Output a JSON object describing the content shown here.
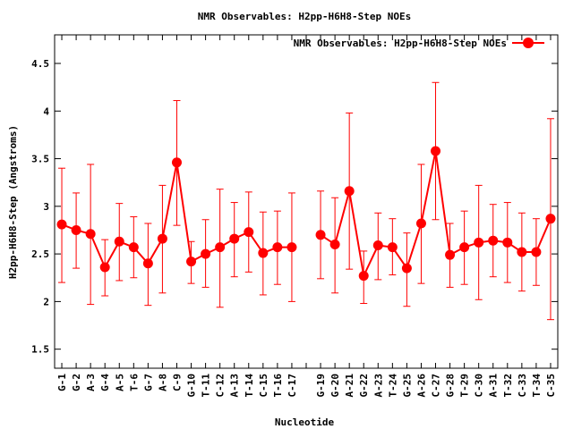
{
  "chart_data": {
    "type": "line",
    "title": "NMR Observables: H2pp-H6H8-Step NOEs",
    "xlabel": "Nucleotide",
    "ylabel": "H2pp-H6H8-Step (Angstroms)",
    "ylim": [
      1.3,
      4.8
    ],
    "yticks": [
      "1.5",
      "2",
      "2.5",
      "3",
      "3.5",
      "4",
      "4.5"
    ],
    "grid": false,
    "legend": "top-right",
    "color": "#ff0000",
    "categories": [
      "G-1",
      "G-2",
      "A-3",
      "G-4",
      "A-5",
      "T-6",
      "G-7",
      "A-8",
      "C-9",
      "G-10",
      "T-11",
      "C-12",
      "A-13",
      "T-14",
      "C-15",
      "T-16",
      "C-17",
      "",
      "G-19",
      "G-20",
      "A-21",
      "G-22",
      "A-23",
      "T-24",
      "G-25",
      "A-26",
      "C-27",
      "G-28",
      "T-29",
      "C-30",
      "A-31",
      "T-32",
      "C-33",
      "T-34",
      "C-35"
    ],
    "series": [
      {
        "name": "NMR Observables: H2pp-H6H8-Step NOEs",
        "values": [
          2.81,
          2.75,
          2.71,
          2.36,
          2.63,
          2.57,
          2.4,
          2.66,
          3.46,
          2.42,
          2.5,
          2.57,
          2.66,
          2.73,
          2.51,
          2.57,
          2.57,
          null,
          2.7,
          2.6,
          3.16,
          2.27,
          2.59,
          2.57,
          2.35,
          2.82,
          3.58,
          2.49,
          2.57,
          2.62,
          2.64,
          2.62,
          2.52,
          2.52,
          2.87
        ],
        "err_low": [
          2.2,
          2.35,
          1.97,
          2.06,
          2.22,
          2.25,
          1.96,
          2.09,
          2.8,
          2.19,
          2.15,
          1.94,
          2.26,
          2.31,
          2.07,
          2.18,
          2.0,
          null,
          2.24,
          2.09,
          2.34,
          1.98,
          2.23,
          2.28,
          1.95,
          2.19,
          2.86,
          2.15,
          2.18,
          2.02,
          2.26,
          2.2,
          2.11,
          2.17,
          1.81
        ],
        "err_high": [
          3.4,
          3.14,
          3.44,
          2.65,
          3.03,
          2.89,
          2.82,
          3.22,
          4.11,
          2.63,
          2.86,
          3.18,
          3.04,
          3.15,
          2.94,
          2.95,
          3.14,
          null,
          3.16,
          3.09,
          3.98,
          2.53,
          2.93,
          2.87,
          2.72,
          3.44,
          4.3,
          2.82,
          2.95,
          3.22,
          3.02,
          3.04,
          2.93,
          2.87,
          3.92
        ]
      }
    ]
  }
}
